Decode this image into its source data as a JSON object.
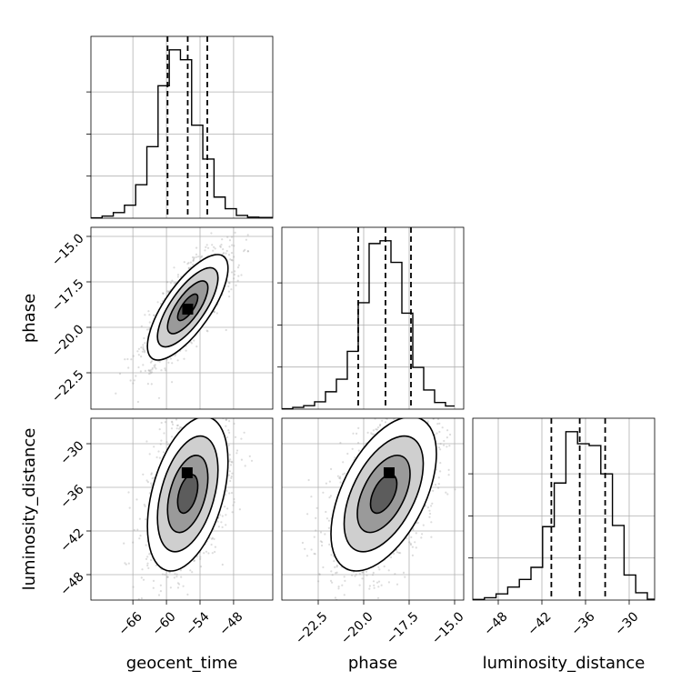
{
  "chart_data": {
    "type": "corner",
    "parameters": [
      "geocent_time",
      "phase",
      "luminosity_distance"
    ],
    "axis_labels": {
      "geocent_time": "geocent_time",
      "phase": "phase",
      "luminosity_distance": "luminosity_distance"
    },
    "ranges": {
      "geocent_time": [
        -73.5,
        -41.0
      ],
      "phase": [
        -24.5,
        -14.5
      ],
      "luminosity_distance": [
        -51.5,
        -26.5
      ]
    },
    "ticks": {
      "geocent_time": [
        -66,
        -60,
        -54,
        -48
      ],
      "phase": [
        -22.5,
        -20.0,
        -17.5,
        -15.0
      ],
      "luminosity_distance": [
        -48,
        -42,
        -36,
        -30
      ]
    },
    "tick_labels": {
      "geocent_time": [
        "−66",
        "−60",
        "−54",
        "−48"
      ],
      "phase": [
        "−22.5",
        "−20.0",
        "−17.5",
        "−15.0"
      ],
      "luminosity_distance": [
        "−48",
        "−42",
        "−36",
        "−30"
      ]
    },
    "quantiles": {
      "geocent_time": [
        -59.8,
        -56.2,
        -52.7
      ],
      "phase": [
        -20.3,
        -18.8,
        -17.4
      ],
      "luminosity_distance": [
        -40.7,
        -36.8,
        -33.3
      ]
    },
    "grid": true,
    "histograms": [
      {
        "param": "geocent_time",
        "bin_edges": [
          -73.5,
          -71.5,
          -69.5,
          -67.5,
          -65.5,
          -63.5,
          -61.5,
          -59.5,
          -57.5,
          -55.5,
          -53.5,
          -51.5,
          -49.5,
          -47.5,
          -45.5,
          -43.5,
          -41.0
        ],
        "counts": [
          1,
          6,
          16,
          37,
          95,
          203,
          376,
          478,
          450,
          264,
          168,
          60,
          27,
          8,
          3,
          2
        ]
      },
      {
        "param": "phase",
        "bin_edges": [
          -24.5,
          -23.9,
          -23.3,
          -22.7,
          -22.1,
          -21.5,
          -20.9,
          -20.3,
          -19.7,
          -19.1,
          -18.5,
          -17.9,
          -17.3,
          -16.7,
          -16.1,
          -15.5,
          -15.0
        ],
        "counts": [
          1,
          5,
          10,
          21,
          50,
          86,
          166,
          306,
          476,
          484,
          422,
          276,
          120,
          55,
          19,
          9
        ]
      },
      {
        "param": "luminosity_distance",
        "bin_edges": [
          -51.5,
          -49.9,
          -48.3,
          -46.7,
          -45.1,
          -43.5,
          -41.9,
          -40.3,
          -38.7,
          -37.1,
          -35.5,
          -33.9,
          -32.3,
          -30.7,
          -29.1,
          -27.5,
          -26.5
        ],
        "counts": [
          2,
          8,
          21,
          44,
          70,
          111,
          249,
          397,
          571,
          530,
          524,
          428,
          253,
          85,
          25,
          3
        ]
      }
    ],
    "scatter_2d": [
      {
        "x_param": "geocent_time",
        "y_param": "phase",
        "mean": [
          -56.2,
          -18.9
        ],
        "std": [
          3.6,
          1.45
        ],
        "correlation": 0.74,
        "density_peak": [
          -56.2,
          -19.0
        ]
      },
      {
        "x_param": "geocent_time",
        "y_param": "luminosity_distance",
        "mean": [
          -56.2,
          -36.9
        ],
        "std": [
          3.6,
          5.3
        ],
        "correlation": 0.42,
        "density_peak": [
          -56.3,
          -34.0
        ]
      },
      {
        "x_param": "phase",
        "y_param": "luminosity_distance",
        "mean": [
          -18.9,
          -36.9
        ],
        "std": [
          1.45,
          5.3
        ],
        "correlation": 0.52,
        "density_peak": [
          -18.6,
          -34.0
        ]
      }
    ],
    "contour_levels_sigma": [
      0.5,
      1.0,
      1.5,
      2.0
    ],
    "colors": {
      "line": "#000000",
      "points": "#9a9a9a",
      "grid": "#b0b0b0"
    }
  }
}
